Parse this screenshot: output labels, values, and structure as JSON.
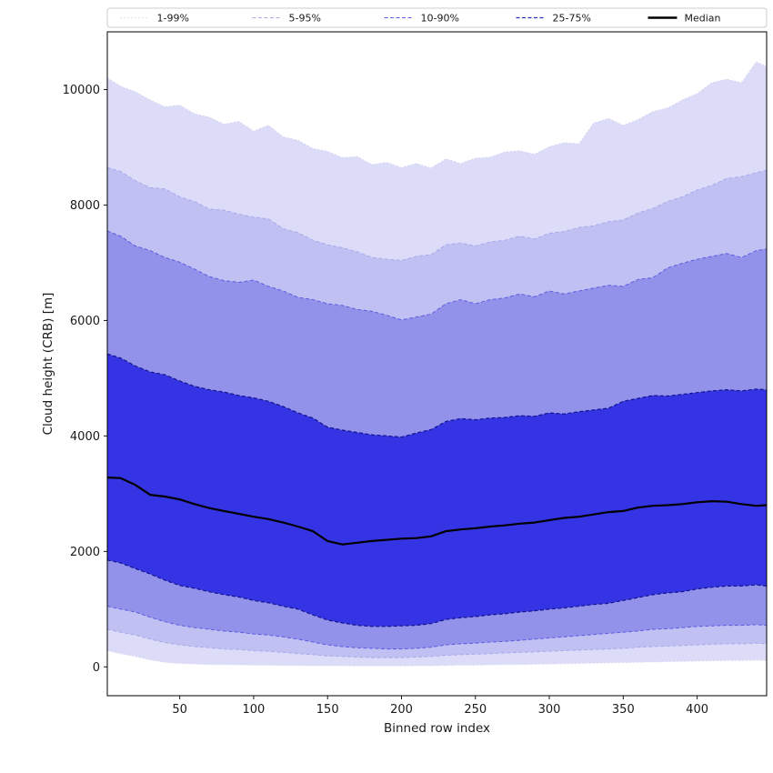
{
  "figure": {
    "xlabel": "Binned row index",
    "ylabel": "Cloud height (CRB) [m]",
    "background": "#ffffff",
    "spine_color": "#000000"
  },
  "legend": {
    "items": [
      {
        "label": "1-99%",
        "color": "#d8d8f6",
        "dash": "1.5,2.5",
        "width": 1
      },
      {
        "label": "5-95%",
        "color": "#ababf0",
        "dash": "4,2.5",
        "width": 1
      },
      {
        "label": "10-90%",
        "color": "#5c5ce4",
        "dash": "4,2.5",
        "width": 1
      },
      {
        "label": "25-75%",
        "color": "#2a2ac0",
        "dash": "4,2.5",
        "width": 1.2
      },
      {
        "label": "Median",
        "color": "#000000",
        "dash": "",
        "width": 2.5
      }
    ]
  },
  "chart_data": {
    "type": "area",
    "title": "",
    "xlabel": "Binned row index",
    "ylabel": "Cloud height (CRB) [m]",
    "xlim": [
      1,
      447
    ],
    "ylim": [
      -500,
      11000
    ],
    "xticks": [
      50,
      100,
      150,
      200,
      250,
      300,
      350,
      400
    ],
    "yticks": [
      0,
      2000,
      4000,
      6000,
      8000,
      10000
    ],
    "grid": false,
    "legend_position": "top",
    "x": [
      1,
      10,
      20,
      30,
      40,
      50,
      60,
      70,
      80,
      90,
      100,
      110,
      120,
      130,
      140,
      150,
      160,
      170,
      180,
      190,
      200,
      210,
      220,
      230,
      240,
      250,
      260,
      270,
      280,
      290,
      300,
      310,
      320,
      330,
      340,
      350,
      360,
      370,
      380,
      390,
      400,
      410,
      420,
      430,
      440,
      447
    ],
    "series": [
      {
        "name": "p1",
        "values": [
          280,
          230,
          180,
          120,
          80,
          60,
          50,
          40,
          40,
          35,
          30,
          30,
          25,
          25,
          20,
          20,
          20,
          15,
          15,
          15,
          15,
          20,
          20,
          25,
          30,
          30,
          35,
          40,
          40,
          45,
          50,
          55,
          60,
          65,
          70,
          75,
          80,
          85,
          90,
          95,
          100,
          105,
          110,
          110,
          115,
          110
        ]
      },
      {
        "name": "p5",
        "values": [
          650,
          600,
          550,
          480,
          420,
          380,
          350,
          330,
          310,
          300,
          280,
          270,
          250,
          230,
          210,
          190,
          180,
          170,
          160,
          160,
          160,
          170,
          180,
          200,
          210,
          220,
          230,
          240,
          250,
          260,
          270,
          280,
          290,
          300,
          310,
          320,
          340,
          350,
          360,
          370,
          380,
          390,
          400,
          400,
          410,
          400
        ]
      },
      {
        "name": "p10",
        "values": [
          1050,
          1000,
          950,
          860,
          780,
          720,
          680,
          650,
          620,
          600,
          570,
          550,
          520,
          480,
          430,
          380,
          350,
          330,
          320,
          310,
          310,
          320,
          340,
          380,
          400,
          410,
          430,
          440,
          460,
          480,
          500,
          520,
          540,
          560,
          580,
          600,
          620,
          650,
          660,
          680,
          700,
          710,
          720,
          720,
          730,
          720
        ]
      },
      {
        "name": "p25",
        "values": [
          1850,
          1800,
          1700,
          1610,
          1500,
          1410,
          1360,
          1300,
          1250,
          1210,
          1150,
          1110,
          1050,
          1000,
          900,
          810,
          760,
          720,
          700,
          700,
          710,
          720,
          750,
          820,
          850,
          870,
          900,
          920,
          950,
          970,
          1000,
          1020,
          1050,
          1080,
          1100,
          1150,
          1200,
          1250,
          1280,
          1300,
          1350,
          1380,
          1400,
          1400,
          1420,
          1400
        ]
      },
      {
        "name": "median",
        "values": [
          3280,
          3270,
          3150,
          2980,
          2950,
          2900,
          2820,
          2750,
          2700,
          2650,
          2600,
          2560,
          2500,
          2430,
          2350,
          2180,
          2120,
          2150,
          2180,
          2200,
          2220,
          2230,
          2260,
          2350,
          2380,
          2400,
          2430,
          2450,
          2480,
          2500,
          2540,
          2580,
          2600,
          2640,
          2680,
          2700,
          2760,
          2790,
          2800,
          2820,
          2850,
          2870,
          2860,
          2820,
          2790,
          2800
        ]
      },
      {
        "name": "p75",
        "values": [
          5420,
          5350,
          5210,
          5110,
          5060,
          4950,
          4860,
          4800,
          4760,
          4700,
          4660,
          4600,
          4510,
          4400,
          4310,
          4150,
          4100,
          4060,
          4020,
          4000,
          3980,
          4050,
          4110,
          4250,
          4300,
          4280,
          4310,
          4320,
          4350,
          4340,
          4400,
          4380,
          4420,
          4450,
          4480,
          4600,
          4650,
          4700,
          4690,
          4720,
          4750,
          4780,
          4800,
          4780,
          4810,
          4800
        ]
      },
      {
        "name": "p90",
        "values": [
          7550,
          7460,
          7290,
          7210,
          7090,
          7010,
          6890,
          6760,
          6690,
          6660,
          6700,
          6590,
          6510,
          6400,
          6360,
          6290,
          6260,
          6190,
          6160,
          6090,
          6010,
          6060,
          6110,
          6290,
          6360,
          6290,
          6360,
          6390,
          6460,
          6410,
          6510,
          6460,
          6510,
          6560,
          6610,
          6590,
          6710,
          6740,
          6910,
          6990,
          7060,
          7110,
          7160,
          7090,
          7210,
          7240
        ]
      },
      {
        "name": "p95",
        "values": [
          8650,
          8580,
          8420,
          8300,
          8280,
          8140,
          8060,
          7930,
          7910,
          7840,
          7790,
          7760,
          7590,
          7520,
          7390,
          7310,
          7260,
          7190,
          7090,
          7060,
          7040,
          7110,
          7140,
          7310,
          7340,
          7290,
          7360,
          7390,
          7460,
          7410,
          7510,
          7540,
          7610,
          7640,
          7710,
          7740,
          7860,
          7940,
          8060,
          8140,
          8260,
          8340,
          8460,
          8490,
          8560,
          8600
        ]
      },
      {
        "name": "p99",
        "values": [
          10200,
          10060,
          9960,
          9820,
          9700,
          9730,
          9580,
          9520,
          9400,
          9450,
          9280,
          9380,
          9180,
          9120,
          8980,
          8930,
          8820,
          8840,
          8700,
          8740,
          8650,
          8720,
          8640,
          8800,
          8720,
          8810,
          8830,
          8920,
          8940,
          8880,
          9010,
          9080,
          9060,
          9420,
          9500,
          9380,
          9480,
          9620,
          9680,
          9820,
          9930,
          10120,
          10180,
          10120,
          10480,
          10400
        ]
      }
    ],
    "bands": [
      {
        "label": "1-99%",
        "lower": "p1",
        "upper": "p99",
        "fill": "#dcdcf8",
        "edge": "#d4d4f4",
        "dash": "1.5,2.5",
        "edge_width": 1
      },
      {
        "label": "5-95%",
        "lower": "p5",
        "upper": "p95",
        "fill": "#c0c0f2",
        "edge": "#a8a8ee",
        "dash": "4,2.5",
        "edge_width": 1
      },
      {
        "label": "10-90%",
        "lower": "p10",
        "upper": "p90",
        "fill": "#9292ea",
        "edge": "#5c5ce0",
        "dash": "4,2.5",
        "edge_width": 1
      },
      {
        "label": "25-75%",
        "lower": "p25",
        "upper": "p75",
        "fill": "#3434e4",
        "edge": "#14148c",
        "dash": "4,2.5",
        "edge_width": 1.2
      }
    ],
    "median": {
      "name": "median",
      "color": "#000000",
      "width": 2.2
    }
  }
}
